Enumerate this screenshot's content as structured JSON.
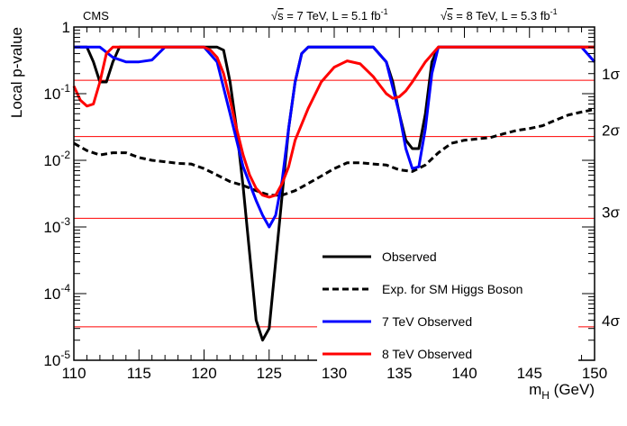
{
  "chart_data": {
    "type": "line",
    "title": "",
    "header_left": "CMS",
    "header_right_7": {
      "root": "√",
      "s": "s",
      "rest": " = 7 TeV, L = 5.1 fb",
      "sup": "-1"
    },
    "header_right_8": {
      "root": "√",
      "s": "s",
      "rest": " = 8 TeV, L = 5.3 fb",
      "sup": "-1"
    },
    "xlabel": {
      "main": "m",
      "sub": "H",
      "unit": " (GeV)"
    },
    "ylabel": "Local p-value",
    "xlim": [
      110,
      150
    ],
    "ylim": [
      1e-05,
      1
    ],
    "yscale": "log",
    "x_ticks": [
      110,
      115,
      120,
      125,
      130,
      135,
      140,
      145,
      150
    ],
    "x_tick_labels": [
      "110",
      "115",
      "120",
      "125",
      "130",
      "135",
      "140",
      "145",
      "150"
    ],
    "y_ticks": [
      {
        "value": 1,
        "base": "1",
        "exp": ""
      },
      {
        "value": 0.1,
        "base": "10",
        "exp": "-1"
      },
      {
        "value": 0.01,
        "base": "10",
        "exp": "-2"
      },
      {
        "value": 0.001,
        "base": "10",
        "exp": "-3"
      },
      {
        "value": 0.0001,
        "base": "10",
        "exp": "-4"
      },
      {
        "value": 1e-05,
        "base": "10",
        "exp": "-5"
      }
    ],
    "sigma_lines": [
      {
        "label": "1σ",
        "value": 0.1587
      },
      {
        "label": "2σ",
        "value": 0.02275
      },
      {
        "label": "3σ",
        "value": 0.00135
      },
      {
        "label": "4σ",
        "value": 3.17e-05
      }
    ],
    "series": [
      {
        "name": "Observed",
        "color": "#000000",
        "dash": "solid",
        "x": [
          110,
          111,
          111.5,
          112,
          112.5,
          113,
          113.5,
          114,
          114.5,
          115,
          116,
          117,
          118,
          119,
          120,
          121,
          121.5,
          122,
          122.5,
          123,
          123.5,
          124,
          124.5,
          125,
          125.5,
          126,
          126.5,
          127,
          127.5,
          128,
          128.5,
          129,
          130,
          131,
          132,
          133,
          134,
          134.5,
          135,
          135.5,
          136,
          136.5,
          137,
          137.5,
          138,
          139,
          140,
          141,
          142,
          143,
          144,
          145,
          146,
          147,
          148,
          149,
          150
        ],
        "y": [
          0.5,
          0.5,
          0.3,
          0.15,
          0.15,
          0.3,
          0.5,
          0.5,
          0.5,
          0.5,
          0.5,
          0.5,
          0.5,
          0.5,
          0.5,
          0.5,
          0.45,
          0.15,
          0.03,
          0.004,
          0.0004,
          4e-05,
          2e-05,
          3e-05,
          0.0003,
          0.003,
          0.03,
          0.15,
          0.4,
          0.5,
          0.5,
          0.5,
          0.5,
          0.5,
          0.5,
          0.5,
          0.3,
          0.15,
          0.05,
          0.02,
          0.015,
          0.015,
          0.05,
          0.3,
          0.5,
          0.5,
          0.5,
          0.5,
          0.5,
          0.5,
          0.5,
          0.5,
          0.5,
          0.5,
          0.5,
          0.5,
          0.5
        ]
      },
      {
        "name": "Exp. for SM Higgs Boson",
        "color": "#000000",
        "dash": "dashed",
        "x": [
          110,
          111,
          112,
          113,
          114,
          115,
          116,
          117,
          118,
          119,
          120,
          121,
          122,
          123,
          124,
          125,
          126,
          127,
          128,
          129,
          130,
          131,
          132,
          133,
          134,
          135,
          136,
          137,
          138,
          139,
          140,
          141,
          142,
          143,
          144,
          145,
          146,
          147,
          148,
          149,
          150
        ],
        "y": [
          0.018,
          0.014,
          0.012,
          0.013,
          0.013,
          0.011,
          0.01,
          0.0095,
          0.009,
          0.0088,
          0.0075,
          0.006,
          0.0048,
          0.0042,
          0.0035,
          0.003,
          0.003,
          0.0035,
          0.0045,
          0.0058,
          0.0075,
          0.0092,
          0.0092,
          0.0088,
          0.0085,
          0.0072,
          0.0068,
          0.0085,
          0.013,
          0.018,
          0.02,
          0.021,
          0.022,
          0.025,
          0.028,
          0.03,
          0.033,
          0.04,
          0.048,
          0.053,
          0.058
        ]
      },
      {
        "name": "7 TeV Observed",
        "color": "#0000ff",
        "dash": "solid",
        "x": [
          110,
          111,
          112,
          113,
          114,
          115,
          116,
          117,
          118,
          119,
          120,
          121,
          122,
          123,
          124,
          124.5,
          125,
          125.5,
          126,
          126.5,
          127,
          127.5,
          128,
          129,
          130,
          131,
          132,
          133,
          134,
          135,
          135.5,
          136,
          136.5,
          137,
          137.5,
          138,
          139,
          140,
          141,
          142,
          143,
          144,
          145,
          146,
          147,
          148,
          149,
          150
        ],
        "y": [
          0.5,
          0.5,
          0.5,
          0.35,
          0.3,
          0.3,
          0.32,
          0.5,
          0.5,
          0.5,
          0.5,
          0.3,
          0.05,
          0.008,
          0.0025,
          0.0015,
          0.001,
          0.0015,
          0.005,
          0.03,
          0.15,
          0.4,
          0.5,
          0.5,
          0.5,
          0.5,
          0.5,
          0.5,
          0.3,
          0.05,
          0.015,
          0.0075,
          0.008,
          0.03,
          0.2,
          0.5,
          0.5,
          0.5,
          0.5,
          0.5,
          0.5,
          0.5,
          0.5,
          0.5,
          0.5,
          0.5,
          0.5,
          0.3
        ]
      },
      {
        "name": "8 TeV Observed",
        "color": "#ff0000",
        "dash": "solid",
        "x": [
          110,
          110.5,
          111,
          111.5,
          112,
          112.5,
          113,
          114,
          115,
          116,
          117,
          118,
          119,
          120,
          120.5,
          121,
          121.5,
          122,
          122.5,
          123,
          123.5,
          124,
          124.5,
          125,
          125.5,
          126,
          126.5,
          127,
          128,
          129,
          130,
          131,
          132,
          133,
          134,
          134.5,
          135,
          135.5,
          136,
          137,
          138,
          139,
          140,
          141,
          142,
          143,
          144,
          145,
          146,
          147,
          148,
          149,
          150
        ],
        "y": [
          0.13,
          0.08,
          0.065,
          0.07,
          0.15,
          0.4,
          0.5,
          0.5,
          0.5,
          0.5,
          0.5,
          0.5,
          0.5,
          0.5,
          0.45,
          0.35,
          0.2,
          0.08,
          0.03,
          0.012,
          0.006,
          0.0038,
          0.003,
          0.0028,
          0.003,
          0.0045,
          0.008,
          0.02,
          0.06,
          0.15,
          0.25,
          0.31,
          0.28,
          0.18,
          0.1,
          0.085,
          0.09,
          0.11,
          0.15,
          0.3,
          0.5,
          0.5,
          0.5,
          0.5,
          0.5,
          0.5,
          0.5,
          0.5,
          0.5,
          0.5,
          0.5,
          0.5,
          0.5
        ]
      }
    ],
    "legend": [
      {
        "label": "Observed",
        "color": "#000000",
        "dash": "solid"
      },
      {
        "label": "Exp. for SM Higgs Boson",
        "color": "#000000",
        "dash": "dashed"
      },
      {
        "label": "7 TeV Observed",
        "color": "#0000ff",
        "dash": "solid"
      },
      {
        "label": "8 TeV Observed",
        "color": "#ff0000",
        "dash": "solid"
      }
    ],
    "legend_position": "bottom-right",
    "grid": false
  }
}
